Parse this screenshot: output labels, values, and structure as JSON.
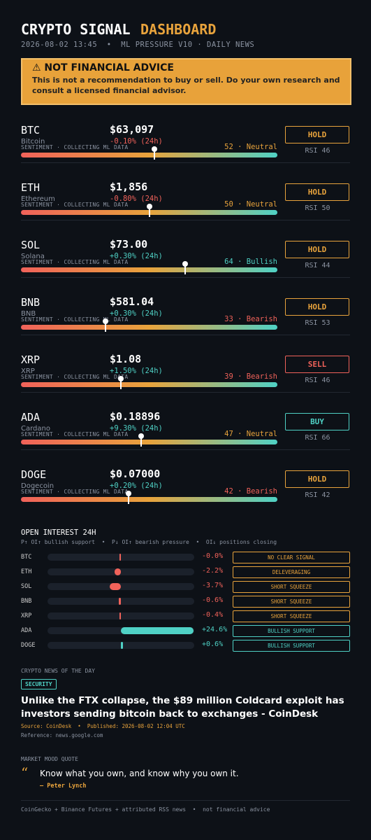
{
  "header": {
    "title": "CRYPTO SIGNAL",
    "title_accent": "DASHBOARD",
    "subtitle": "2026-08-02 13:45  •  ML PRESSURE V10 · DAILY NEWS"
  },
  "warning": {
    "title": "⚠ NOT FINANCIAL ADVICE",
    "text": "This is not a recommendation to buy or sell. Do your own research and consult a licensed financial advisor."
  },
  "coins": [
    {
      "symbol": "BTC",
      "price": "$63,097",
      "name": "Bitcoin",
      "change": "-0.10% (24h)",
      "sentiment_note": "SENTIMENT · COLLECTING ML DATA",
      "sentiment": {
        "value": 52,
        "label": "52 · Neutral"
      },
      "mood_color": "#e8a33c",
      "signal": "HOLD",
      "signal_color": "#e8a33c",
      "rsi": "RSI 46"
    },
    {
      "symbol": "ETH",
      "price": "$1,856",
      "name": "Ethereum",
      "change": "-0.80% (24h)",
      "sentiment_note": "SENTIMENT · COLLECTING ML DATA",
      "sentiment": {
        "value": 50,
        "label": "50 · Neutral"
      },
      "mood_color": "#e8a33c",
      "signal": "HOLD",
      "signal_color": "#e8a33c",
      "rsi": "RSI 50"
    },
    {
      "symbol": "SOL",
      "price": "$73.00",
      "name": "Solana",
      "change": "+0.30% (24h)",
      "sentiment_note": "SENTIMENT · COLLECTING ML DATA",
      "sentiment": {
        "value": 64,
        "label": "64 · Bullish"
      },
      "mood_color": "#4fd1c5",
      "signal": "HOLD",
      "signal_color": "#e8a33c",
      "rsi": "RSI 44"
    },
    {
      "symbol": "BNB",
      "price": "$581.04",
      "name": "BNB",
      "change": "+0.30% (24h)",
      "sentiment_note": "SENTIMENT · COLLECTING ML DATA",
      "sentiment": {
        "value": 33,
        "label": "33 · Bearish"
      },
      "mood_color": "#f0625a",
      "signal": "HOLD",
      "signal_color": "#e8a33c",
      "rsi": "RSI 53"
    },
    {
      "symbol": "XRP",
      "price": "$1.08",
      "name": "XRP",
      "change": "+1.50% (24h)",
      "sentiment_note": "SENTIMENT · COLLECTING ML DATA",
      "sentiment": {
        "value": 39,
        "label": "39 · Bearish"
      },
      "mood_color": "#f0625a",
      "signal": "SELL",
      "signal_color": "#f0625a",
      "rsi": "RSI 46"
    },
    {
      "symbol": "ADA",
      "price": "$0.18896",
      "name": "Cardano",
      "change": "+9.30% (24h)",
      "sentiment_note": "SENTIMENT · COLLECTING ML DATA",
      "sentiment": {
        "value": 47,
        "label": "47 · Neutral"
      },
      "mood_color": "#e8a33c",
      "signal": "BUY",
      "signal_color": "#4fd1c5",
      "rsi": "RSI 66"
    },
    {
      "symbol": "DOGE",
      "price": "$0.07000",
      "name": "Dogecoin",
      "change": "+0.20% (24h)",
      "sentiment_note": "SENTIMENT · COLLECTING ML DATA",
      "sentiment": {
        "value": 42,
        "label": "42 · Bearish"
      },
      "mood_color": "#f0625a",
      "signal": "HOLD",
      "signal_color": "#e8a33c",
      "rsi": "RSI 42"
    }
  ],
  "open_interest": {
    "title": "OPEN INTEREST 24H",
    "legend": "P↑ OI↑ bullish support  •  P↓ OI↑ bearish pressure  •  OI↓ positions closing",
    "rows": [
      {
        "symbol": "BTC",
        "change": {
          "value": -0.0,
          "label": "-0.0%"
        },
        "signal": "NO CLEAR SIGNAL",
        "signal_color": "#e8a33c"
      },
      {
        "symbol": "ETH",
        "change": {
          "value": -2.2,
          "label": "-2.2%"
        },
        "signal": "DELEVERAGING",
        "signal_color": "#e8a33c"
      },
      {
        "symbol": "SOL",
        "change": {
          "value": -3.7,
          "label": "-3.7%"
        },
        "signal": "SHORT SQUEEZE",
        "signal_color": "#e8a33c"
      },
      {
        "symbol": "BNB",
        "change": {
          "value": -0.6,
          "label": "-0.6%"
        },
        "signal": "SHORT SQUEEZE",
        "signal_color": "#e8a33c"
      },
      {
        "symbol": "XRP",
        "change": {
          "value": -0.4,
          "label": "-0.4%"
        },
        "signal": "SHORT SQUEEZE",
        "signal_color": "#e8a33c"
      },
      {
        "symbol": "ADA",
        "change": {
          "value": 24.6,
          "label": "+24.6%"
        },
        "signal": "BULLISH SUPPORT",
        "signal_color": "#4fd1c5"
      },
      {
        "symbol": "DOGE",
        "change": {
          "value": 0.6,
          "label": "+0.6%"
        },
        "signal": "BULLISH SUPPORT",
        "signal_color": "#4fd1c5"
      }
    ]
  },
  "news": {
    "label": "CRYPTO NEWS OF THE DAY",
    "tag": "SECURITY",
    "headline": "Unlike the FTX collapse, the $89 million Coldcard exploit has investors sending bitcoin back to exchanges - CoinDesk",
    "meta": "Source: CoinDesk  •  Published: 2026-08-02 12:04 UTC",
    "reference": "Reference: news.google.com"
  },
  "quote": {
    "label": "MARKET MOOD QUOTE",
    "mark": "“",
    "text": "Know what you own, and know why you own it.",
    "author": "— Peter Lynch"
  },
  "footer": "CoinGecko + Binance Futures + attributed RSS news  •  not financial advice"
}
